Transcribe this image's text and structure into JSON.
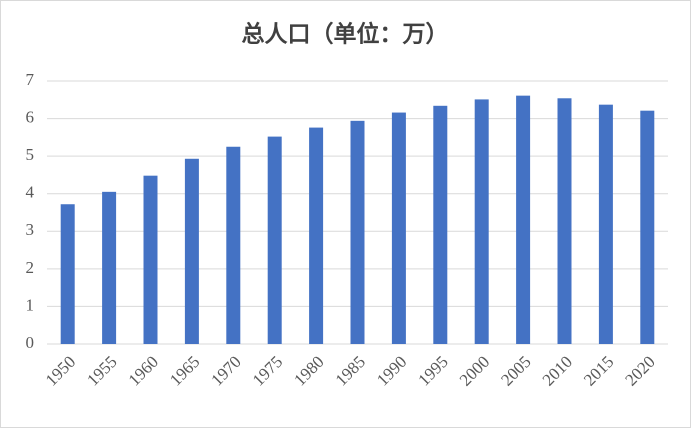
{
  "chart_data": {
    "type": "bar",
    "title": "总人口（单位：万）",
    "categories": [
      "1950",
      "1955",
      "1960",
      "1965",
      "1970",
      "1975",
      "1980",
      "1985",
      "1990",
      "1995",
      "2000",
      "2005",
      "2010",
      "2015",
      "2020"
    ],
    "values": [
      3.72,
      4.05,
      4.48,
      4.93,
      5.25,
      5.52,
      5.76,
      5.94,
      6.16,
      6.34,
      6.51,
      6.61,
      6.54,
      6.37,
      6.21
    ],
    "color": "#4472c4",
    "ylim": [
      0,
      7
    ],
    "yticks": [
      0,
      1,
      2,
      3,
      4,
      5,
      6,
      7
    ],
    "grid": true
  }
}
